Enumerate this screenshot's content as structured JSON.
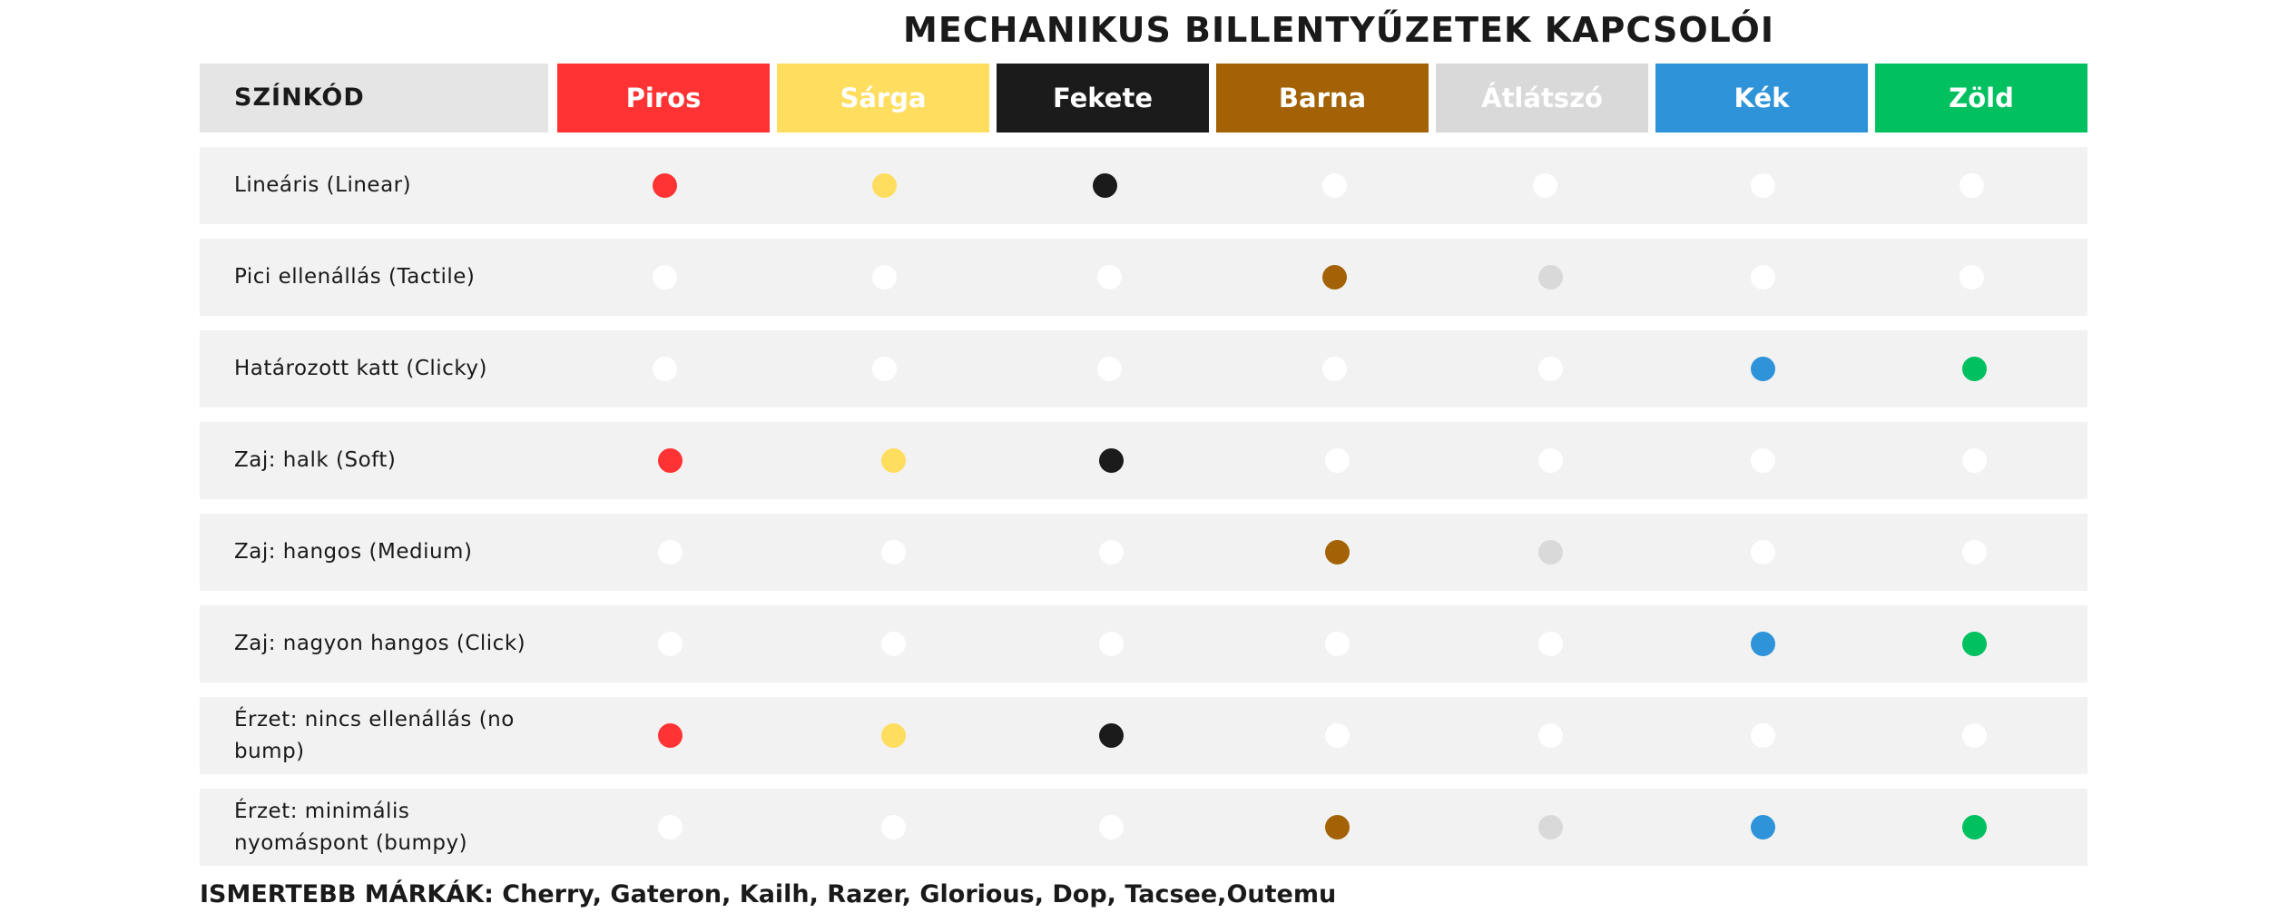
{
  "title": "MECHANIKUS BILLENTYŰZETEK KAPCSOLÓI",
  "header": {
    "label": "SZÍNKÓD",
    "columns": [
      {
        "label": "Piros",
        "color": "#ff3333"
      },
      {
        "label": "Sárga",
        "color": "#ffdd5e"
      },
      {
        "label": "Fekete",
        "color": "#1b1b1b"
      },
      {
        "label": "Barna",
        "color": "#a36205"
      },
      {
        "label": "Átlátszó",
        "color": "#d9d9d9"
      },
      {
        "label": "Kék",
        "color": "#2e93d8"
      },
      {
        "label": "Zöld",
        "color": "#00c060"
      }
    ]
  },
  "empty_dot_color": "#ffffff",
  "rows": [
    {
      "label": "Lineáris (Linear)",
      "marks": [
        true,
        true,
        true,
        false,
        false,
        false,
        false
      ]
    },
    {
      "label": "Pici ellenállás (Tactile)",
      "marks": [
        false,
        false,
        false,
        true,
        true,
        false,
        false
      ]
    },
    {
      "label": "Határozott katt (Clicky)",
      "marks": [
        false,
        false,
        false,
        false,
        false,
        true,
        true
      ]
    },
    {
      "label": "Zaj: halk (Soft)",
      "marks": [
        true,
        true,
        true,
        false,
        false,
        false,
        false
      ]
    },
    {
      "label": "Zaj: hangos (Medium)",
      "marks": [
        false,
        false,
        false,
        true,
        true,
        false,
        false
      ]
    },
    {
      "label": "Zaj: nagyon hangos (Click)",
      "marks": [
        false,
        false,
        false,
        false,
        false,
        true,
        true
      ]
    },
    {
      "label": "Érzet: nincs ellenállás (no bump)",
      "marks": [
        true,
        true,
        true,
        false,
        false,
        false,
        false
      ]
    },
    {
      "label": "Érzet: minimális nyomáspont (bumpy)",
      "marks": [
        false,
        false,
        false,
        true,
        true,
        true,
        true
      ]
    }
  ],
  "footer": "ISMERTEBB MÁRKÁK: Cherry, Gateron, Kailh, Razer, Glorious, Dop, Tacsee,Outemu"
}
